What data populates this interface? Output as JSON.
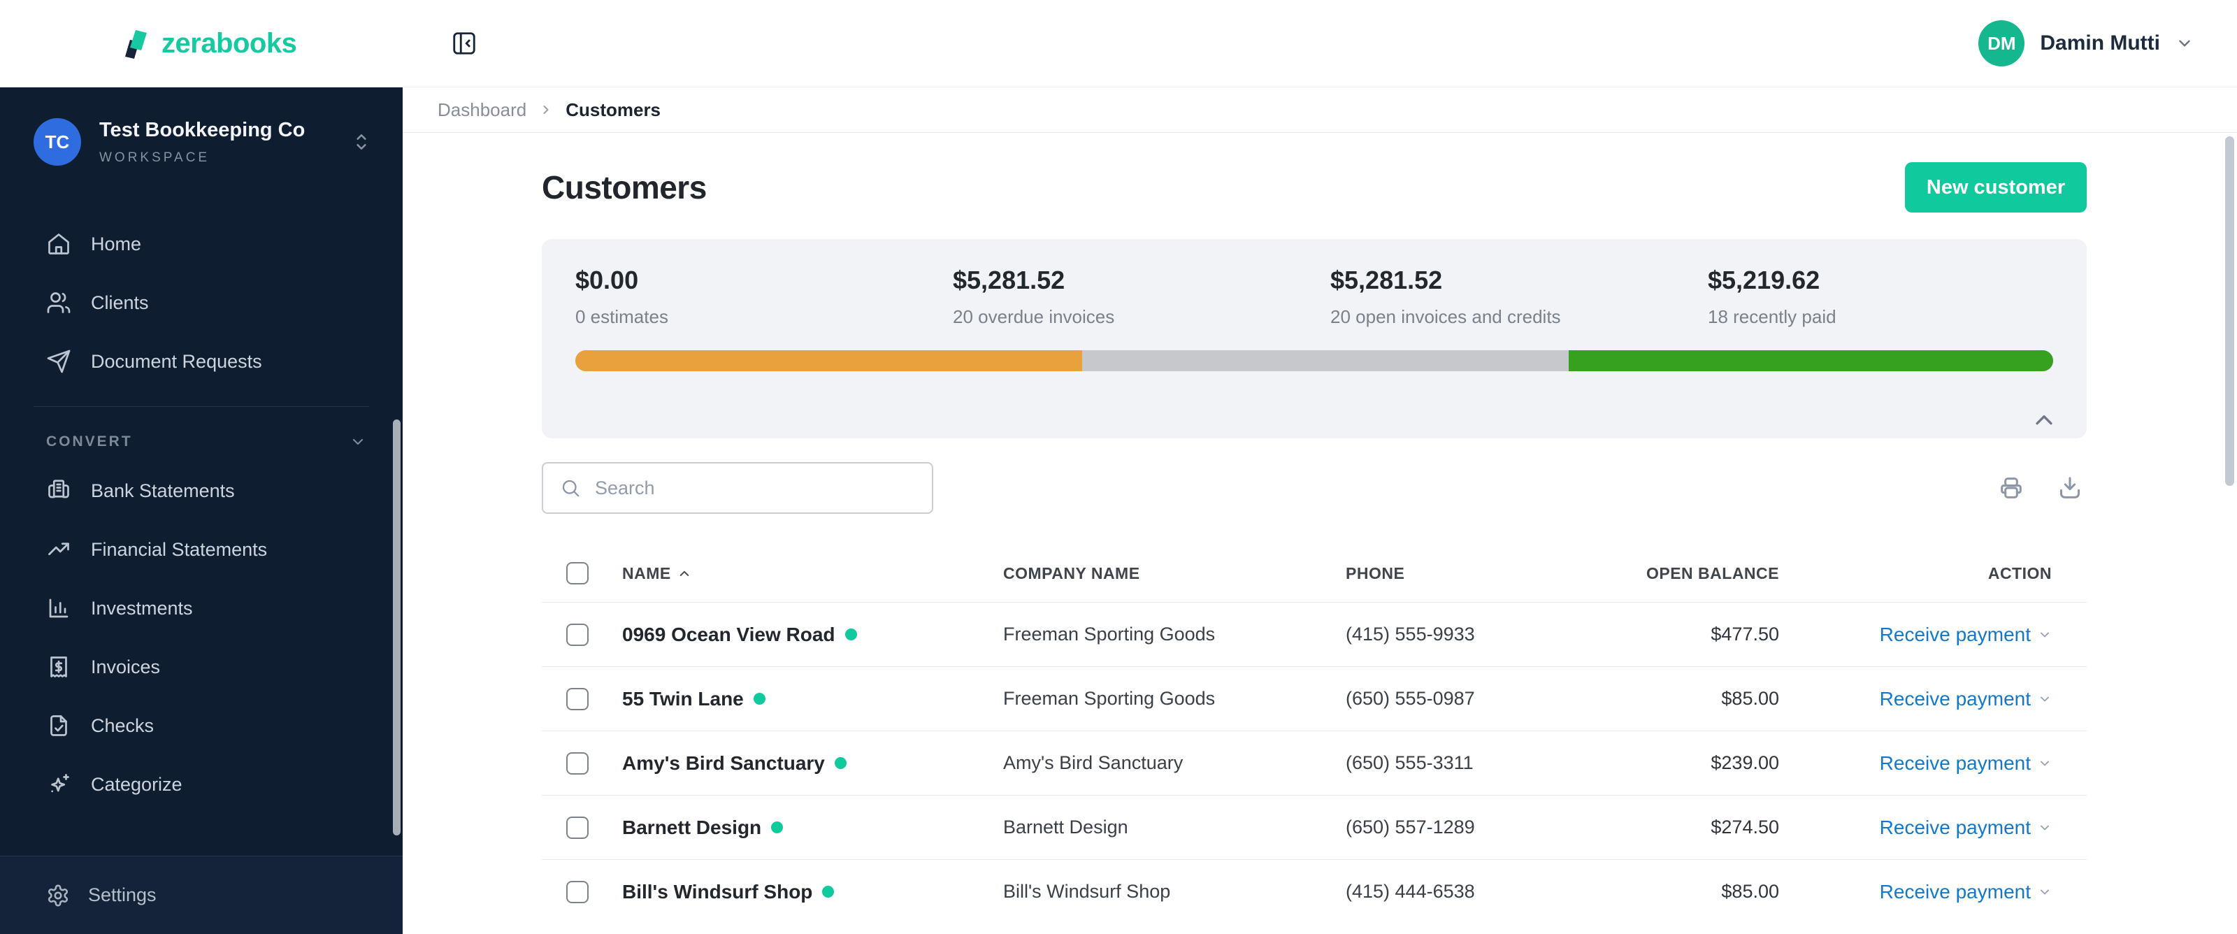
{
  "header": {
    "logo_text": "zerabooks",
    "user": {
      "initials": "DM",
      "name": "Damin Mutti"
    }
  },
  "sidebar": {
    "workspace": {
      "initials": "TC",
      "name": "Test Bookkeeping Co",
      "label": "WORKSPACE"
    },
    "main_items": [
      {
        "icon": "home-icon",
        "label": "Home"
      },
      {
        "icon": "users-icon",
        "label": "Clients"
      },
      {
        "icon": "send-icon",
        "label": "Document Requests"
      }
    ],
    "section_label": "CONVERT",
    "convert_items": [
      {
        "icon": "bank-statement-icon",
        "label": "Bank Statements"
      },
      {
        "icon": "trending-up-icon",
        "label": "Financial Statements"
      },
      {
        "icon": "bar-chart-icon",
        "label": "Investments"
      },
      {
        "icon": "receipt-dollar-icon",
        "label": "Invoices"
      },
      {
        "icon": "file-check-icon",
        "label": "Checks"
      },
      {
        "icon": "sparkles-icon",
        "label": "Categorize"
      }
    ],
    "footer_item": {
      "icon": "gear-icon",
      "label": "Settings"
    }
  },
  "breadcrumb": {
    "parent": "Dashboard",
    "current": "Customers"
  },
  "page": {
    "title": "Customers",
    "new_customer_label": "New customer"
  },
  "stats": {
    "items": [
      {
        "value": "$0.00",
        "label": "0 estimates"
      },
      {
        "value": "$5,281.52",
        "label": "20 overdue invoices"
      },
      {
        "value": "$5,281.52",
        "label": "20 open invoices and credits"
      },
      {
        "value": "$5,219.62",
        "label": "18 recently paid"
      }
    ],
    "progress_segments": [
      {
        "name": "overdue",
        "color": "#e8a13c",
        "percent": 34.3
      },
      {
        "name": "open",
        "color": "#c6c8cc",
        "percent": 32.9
      },
      {
        "name": "paid",
        "color": "#35a11e",
        "percent": 32.8
      }
    ]
  },
  "toolbar": {
    "search_placeholder": "Search"
  },
  "table": {
    "headers": {
      "name": "NAME",
      "company": "COMPANY NAME",
      "phone": "PHONE",
      "balance": "OPEN BALANCE",
      "action": "ACTION"
    },
    "sorted_by": "NAME",
    "action_label": "Receive payment",
    "rows": [
      {
        "name": "0969 Ocean View Road",
        "company": "Freeman Sporting Goods",
        "phone": "(415) 555-9933",
        "balance": "$477.50"
      },
      {
        "name": "55 Twin Lane",
        "company": "Freeman Sporting Goods",
        "phone": "(650) 555-0987",
        "balance": "$85.00"
      },
      {
        "name": "Amy's Bird Sanctuary",
        "company": "Amy's Bird Sanctuary",
        "phone": "(650) 555-3311",
        "balance": "$239.00"
      },
      {
        "name": "Barnett Design",
        "company": "Barnett Design",
        "phone": "(650) 557-1289",
        "balance": "$274.50"
      },
      {
        "name": "Bill's Windsurf Shop",
        "company": "Bill's Windsurf Shop",
        "phone": "(415) 444-6538",
        "balance": "$85.00"
      }
    ]
  },
  "colors": {
    "brand_green": "#10c99c",
    "sidebar_bg": "#0f1d31",
    "action_blue": "#1478c9",
    "progress_orange": "#e8a13c",
    "progress_gray": "#c6c8cc",
    "progress_green": "#35a11e"
  }
}
